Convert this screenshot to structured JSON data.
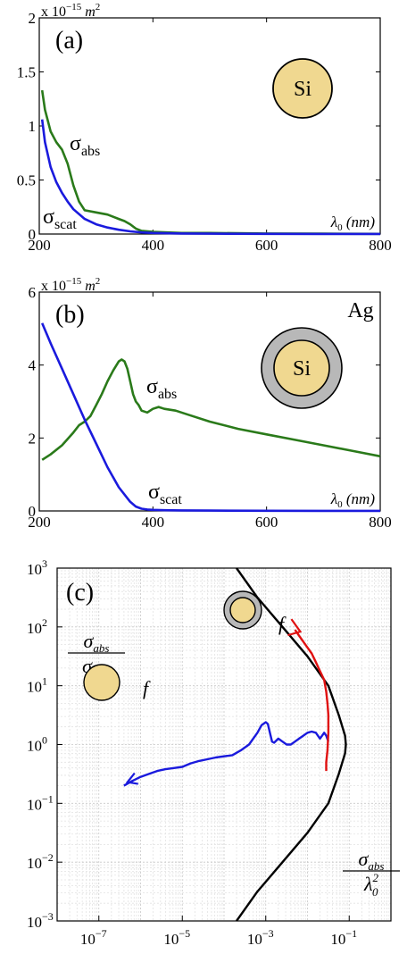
{
  "chart_data": [
    {
      "type": "line",
      "panel_label": "(a)",
      "inset_label": "Si",
      "scale_text": "x 10",
      "scale_exp": "−15",
      "scale_unit": "m",
      "scale_unit_exp": "2",
      "xlabel_sym": "λ",
      "xlabel_sub": "0",
      "xlabel_unit": "(nm)",
      "xlim": [
        200,
        800
      ],
      "ylim": [
        0,
        2
      ],
      "xticks": [
        "200",
        "400",
        "600",
        "800"
      ],
      "yticks": [
        "0",
        "0.5",
        "1",
        "1.5",
        "2"
      ],
      "colors": {
        "abs": "#2a7a1a",
        "scat": "#1a1add",
        "core": "#f0d890"
      },
      "series": [
        {
          "name": "σ",
          "sub": "abs",
          "key": "abs",
          "x": [
            205,
            210,
            220,
            230,
            240,
            250,
            260,
            270,
            280,
            300,
            320,
            340,
            350,
            360,
            370,
            380,
            400,
            450,
            500,
            600,
            700,
            800
          ],
          "y": [
            1.33,
            1.15,
            0.95,
            0.85,
            0.78,
            0.65,
            0.45,
            0.3,
            0.22,
            0.2,
            0.18,
            0.14,
            0.12,
            0.09,
            0.05,
            0.03,
            0.02,
            0.01,
            0.01,
            0.005,
            0.003,
            0.002
          ]
        },
        {
          "name": "σ",
          "sub": "scat",
          "key": "scat",
          "x": [
            205,
            210,
            220,
            230,
            240,
            250,
            260,
            280,
            300,
            320,
            340,
            360,
            380,
            400,
            450,
            500,
            600,
            700,
            800
          ],
          "y": [
            1.06,
            0.85,
            0.62,
            0.48,
            0.38,
            0.3,
            0.23,
            0.14,
            0.09,
            0.06,
            0.04,
            0.025,
            0.015,
            0.01,
            0.005,
            0.003,
            0.002,
            0.001,
            0.001
          ]
        }
      ]
    },
    {
      "type": "line",
      "panel_label": "(b)",
      "inset_label": "Si",
      "shell_label": "Ag",
      "scale_text": "x 10",
      "scale_exp": "−15",
      "scale_unit": "m",
      "scale_unit_exp": "2",
      "xlabel_sym": "λ",
      "xlabel_sub": "0",
      "xlabel_unit": "(nm)",
      "xlim": [
        200,
        800
      ],
      "ylim": [
        0,
        6
      ],
      "xticks": [
        "200",
        "400",
        "600",
        "800"
      ],
      "yticks": [
        "0",
        "2",
        "4",
        "6"
      ],
      "colors": {
        "abs": "#2a7a1a",
        "scat": "#1a1add",
        "core": "#f0d890",
        "shell": "#b8b8b8"
      },
      "series": [
        {
          "name": "σ",
          "sub": "abs",
          "key": "abs",
          "x": [
            205,
            220,
            240,
            260,
            270,
            280,
            290,
            300,
            310,
            320,
            330,
            340,
            345,
            350,
            355,
            360,
            365,
            370,
            375,
            380,
            390,
            400,
            410,
            420,
            440,
            460,
            500,
            550,
            600,
            650,
            700,
            750,
            800
          ],
          "y": [
            1.4,
            1.55,
            1.8,
            2.15,
            2.35,
            2.45,
            2.6,
            2.9,
            3.2,
            3.55,
            3.85,
            4.1,
            4.15,
            4.1,
            3.9,
            3.55,
            3.2,
            3.0,
            2.9,
            2.75,
            2.7,
            2.8,
            2.85,
            2.8,
            2.75,
            2.65,
            2.45,
            2.25,
            2.1,
            1.95,
            1.8,
            1.65,
            1.5
          ]
        },
        {
          "name": "σ",
          "sub": "scat",
          "key": "scat",
          "x": [
            205,
            220,
            240,
            260,
            280,
            300,
            320,
            340,
            360,
            370,
            380,
            390,
            400,
            420,
            450,
            500,
            600,
            700,
            800
          ],
          "y": [
            5.15,
            4.6,
            3.9,
            3.2,
            2.5,
            1.85,
            1.2,
            0.65,
            0.25,
            0.12,
            0.06,
            0.04,
            0.03,
            0.02,
            0.015,
            0.01,
            0.005,
            0.003,
            0.002
          ]
        }
      ]
    },
    {
      "type": "line",
      "panel_label": "(c)",
      "xscale": "log",
      "yscale": "log",
      "xlim_exp": [
        -8,
        0
      ],
      "ylim_exp": [
        -3,
        3
      ],
      "xticks": [
        {
          "base": "10",
          "exp": "−7"
        },
        {
          "base": "10",
          "exp": "−5"
        },
        {
          "base": "10",
          "exp": "−3"
        },
        {
          "base": "10",
          "exp": "−1"
        }
      ],
      "yticks": [
        {
          "base": "10",
          "exp": "−3"
        },
        {
          "base": "10",
          "exp": "−2"
        },
        {
          "base": "10",
          "exp": "−1"
        },
        {
          "base": "10",
          "exp": "0"
        },
        {
          "base": "10",
          "exp": "1"
        },
        {
          "base": "10",
          "exp": "2"
        },
        {
          "base": "10",
          "exp": "3"
        }
      ],
      "grid": true,
      "ylabel_num": "σ",
      "ylabel_num_sub": "abs",
      "ylabel_den": "σ",
      "ylabel_den_sub": "scat",
      "xlabel_num": "σ",
      "xlabel_num_sub": "abs",
      "xlabel_den": "λ",
      "xlabel_den_sub": "0",
      "xlabel_den_exp": "2",
      "arrow_label": "f",
      "colors": {
        "bound": "#000000",
        "si": "#1a1add",
        "agsi": "#e01010",
        "core": "#f0d890",
        "shell": "#b8b8b8"
      },
      "series": [
        {
          "key": "bound",
          "x_exp": [
            -3.7,
            -3.2,
            -2.6,
            -2.0,
            -1.5,
            -1.25,
            -1.1,
            -1.08,
            -1.1,
            -1.25,
            -1.5,
            -2.0,
            -2.6,
            -3.2,
            -3.7
          ],
          "y_exp": [
            3.0,
            2.5,
            2.0,
            1.5,
            1.0,
            0.5,
            0.15,
            0.0,
            -0.15,
            -0.5,
            -1.0,
            -1.5,
            -2.0,
            -2.5,
            -3.0
          ]
        },
        {
          "key": "si",
          "x_exp": [
            -6.4,
            -6.2,
            -6.0,
            -5.8,
            -5.6,
            -5.4,
            -5.2,
            -5.0,
            -4.8,
            -4.6,
            -4.4,
            -4.2,
            -4.0,
            -3.8,
            -3.6,
            -3.4,
            -3.2,
            -3.1,
            -3.0,
            -2.95,
            -2.9,
            -2.85,
            -2.8,
            -2.7,
            -2.6,
            -2.5,
            -2.4,
            -2.3,
            -2.2,
            -2.1,
            -2.0,
            -1.9,
            -1.8,
            -1.7,
            -1.6,
            -1.55,
            -1.5
          ],
          "y_exp": [
            -0.7,
            -0.62,
            -0.55,
            -0.5,
            -0.45,
            -0.42,
            -0.4,
            -0.38,
            -0.32,
            -0.28,
            -0.25,
            -0.22,
            -0.2,
            -0.18,
            -0.1,
            0.0,
            0.2,
            0.33,
            0.38,
            0.35,
            0.2,
            0.05,
            0.03,
            0.1,
            0.05,
            0.0,
            0.0,
            0.05,
            0.1,
            0.15,
            0.2,
            0.22,
            0.2,
            0.1,
            0.2,
            0.15,
            0.05
          ]
        },
        {
          "key": "agsi",
          "x_exp": [
            -2.3,
            -2.2,
            -2.1,
            -2.0,
            -1.9,
            -1.8,
            -1.7,
            -1.6,
            -1.55,
            -1.52,
            -1.5,
            -1.5,
            -1.52,
            -1.55,
            -1.55
          ],
          "y_exp": [
            1.95,
            1.85,
            1.75,
            1.65,
            1.55,
            1.4,
            1.25,
            1.1,
            0.9,
            0.7,
            0.5,
            0.2,
            -0.1,
            -0.3,
            -0.45
          ]
        }
      ]
    }
  ]
}
